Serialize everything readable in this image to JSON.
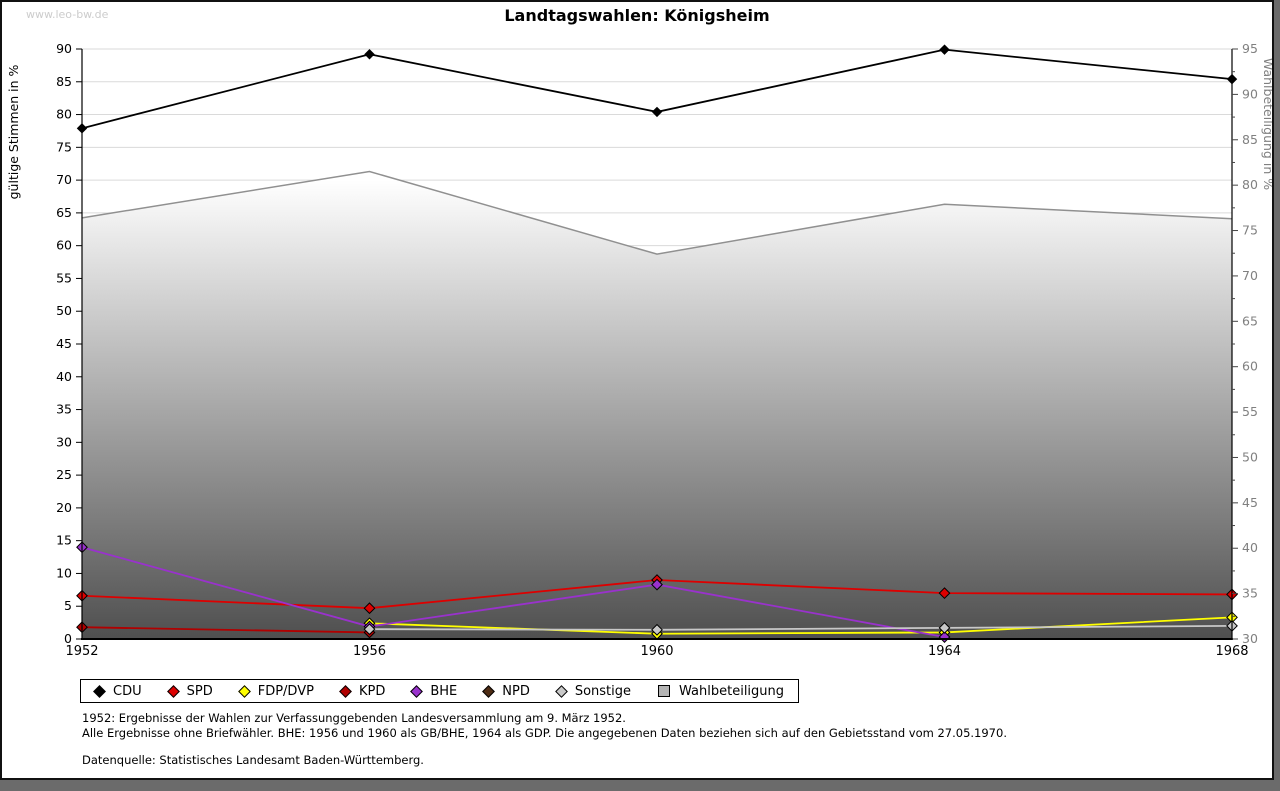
{
  "watermark": "www.leo-bw.de",
  "title": "Landtagswahlen: Königsheim",
  "footnotes": {
    "line1": "1952: Ergebnisse der Wahlen zur Verfassunggebenden Landesversammlung am 9. März 1952.",
    "line2": "Alle Ergebnisse ohne Briefwähler. BHE: 1956 und 1960 als GB/BHE, 1964 als GDP. Die angegebenen Daten beziehen sich auf den Gebietsstand vom 27.05.1970.",
    "datasource": "Datenquelle: Statistisches Landesamt Baden-Württemberg."
  },
  "chart_data": {
    "type": "line",
    "title": "Landtagswahlen: Königsheim",
    "x": [
      1952,
      1956,
      1960,
      1964,
      1968
    ],
    "left_axis": {
      "label": "gültige Stimmen in %",
      "min": 0,
      "max": 90,
      "step": 5,
      "color": "#000000"
    },
    "right_axis": {
      "label": "Wahlbeteiligung in %",
      "min": 30,
      "max": 95,
      "step": 5,
      "minor_step": 2.5,
      "color": "#808080"
    },
    "grid": {
      "horizontal": true,
      "vertical": false,
      "color": "#dadada"
    },
    "legend_position": "bottom",
    "area_gradient": {
      "top": "#ffffff",
      "bottom": "#4f4f4f"
    },
    "series": [
      {
        "name": "CDU",
        "axis": "left",
        "type": "line",
        "marker": "diamond",
        "color": "#000000",
        "values": [
          77.9,
          89.2,
          80.4,
          89.9,
          85.4
        ]
      },
      {
        "name": "SPD",
        "axis": "left",
        "type": "line",
        "marker": "diamond",
        "color": "#dd0000",
        "values": [
          6.6,
          4.7,
          9.0,
          7.0,
          6.8
        ]
      },
      {
        "name": "FDP/DVP",
        "axis": "left",
        "type": "line",
        "marker": "diamond",
        "color": "#ffff00",
        "values": [
          null,
          2.4,
          0.8,
          1.0,
          3.3
        ]
      },
      {
        "name": "KPD",
        "axis": "left",
        "type": "line",
        "marker": "diamond",
        "color": "#b00000",
        "values": [
          1.8,
          1.0,
          null,
          null,
          null
        ]
      },
      {
        "name": "BHE",
        "axis": "left",
        "type": "line",
        "marker": "diamond",
        "color": "#9932cc",
        "values": [
          14.0,
          1.9,
          8.3,
          0.3,
          null
        ]
      },
      {
        "name": "NPD",
        "axis": "left",
        "type": "line",
        "marker": "diamond",
        "color": "#4e2c14",
        "values": [
          null,
          null,
          null,
          null,
          null
        ]
      },
      {
        "name": "Sonstige",
        "axis": "left",
        "type": "line",
        "marker": "diamond",
        "color": "#c8c8c8",
        "values": [
          null,
          1.5,
          1.4,
          1.7,
          2.0
        ]
      },
      {
        "name": "Wahlbeteiligung",
        "axis": "right",
        "type": "area",
        "marker": "square",
        "color": "#909090",
        "values": [
          76.4,
          81.5,
          72.4,
          77.9,
          76.3
        ]
      }
    ]
  }
}
